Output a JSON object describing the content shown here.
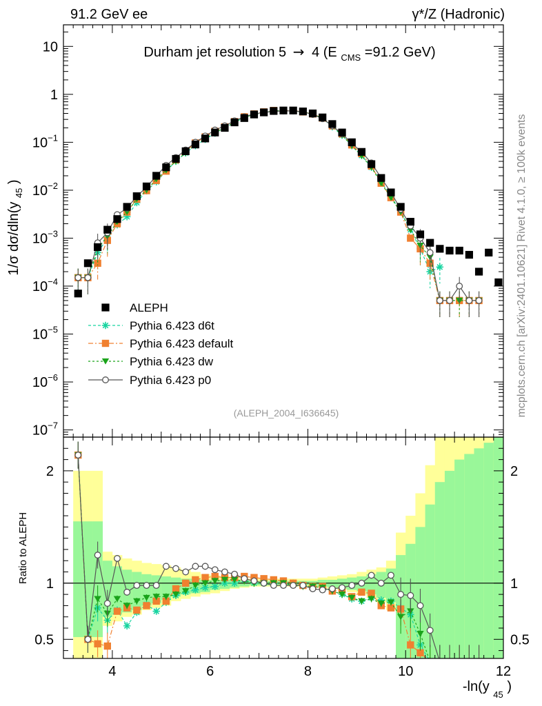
{
  "header": {
    "left": "91.2 GeV ee",
    "right": "γ*/Z (Hadronic)",
    "side_top": "Rivet 4.1.0, ≥ 100k events",
    "side_bottom": "mcplots.cern.ch [arXiv:2401.10621]",
    "analysis_id": "(ALEPH_2004_I636645)"
  },
  "chart_data": {
    "type": "scatter",
    "title": "Durham jet resolution 5→ 4 (E_CMS=91.2 GeV)",
    "title_main": "Durham jet resolution 5",
    "title_arrow": "→",
    "title_tail": "4 (E",
    "title_sub": "CMS",
    "title_end": "=91.2 GeV)",
    "xlabel": "-ln(y_45)",
    "xlabel_main": "-ln(y",
    "xlabel_sub": "45",
    "xlabel_end": ")",
    "ylabel": "1/σ dσ/dln(y_45)",
    "ylabel_main": "1/σ  dσ/dln(y",
    "ylabel_sub": "45",
    "ylabel_end": ")",
    "ratio_ylabel": "Ratio to ALEPH",
    "xlim": [
      3.0,
      12.0
    ],
    "ylim_log": [
      -7.15,
      1.45
    ],
    "ratio_ylim": [
      0.33,
      2.3
    ],
    "x_ticks": [
      4,
      6,
      8,
      10,
      12
    ],
    "x_tick_labels": [
      "4",
      "6",
      "8",
      "10",
      "12"
    ],
    "y_ticks": [
      {
        "exp": 1,
        "label": "10"
      },
      {
        "exp": 0,
        "label": "1"
      },
      {
        "exp": -1,
        "label": "10",
        "sup": "−1"
      },
      {
        "exp": -2,
        "label": "10",
        "sup": "−2"
      },
      {
        "exp": -3,
        "label": "10",
        "sup": "−3"
      },
      {
        "exp": -4,
        "label": "10",
        "sup": "−4"
      },
      {
        "exp": -5,
        "label": "10",
        "sup": "−5"
      },
      {
        "exp": -6,
        "label": "10",
        "sup": "−6"
      },
      {
        "exp": -7,
        "label": "10",
        "sup": "−7"
      }
    ],
    "ratio_ticks": [
      {
        "value": 0.5,
        "label": "0.5"
      },
      {
        "value": 1,
        "label": "1"
      },
      {
        "value": 2,
        "label": "2"
      }
    ],
    "legend": [
      {
        "key": "aleph",
        "label": "ALEPH"
      },
      {
        "key": "d6t",
        "label": "Pythia 6.423 d6t"
      },
      {
        "key": "default",
        "label": "Pythia 6.423 default"
      },
      {
        "key": "dw",
        "label": "Pythia 6.423 dw"
      },
      {
        "key": "p0",
        "label": "Pythia 6.423 p0"
      }
    ],
    "colors": {
      "aleph": "#000000",
      "d6t": "#17d4a0",
      "default": "#f08030",
      "dw": "#1aa31a",
      "p0": "#555555",
      "band_inner": "#99f799",
      "band_outer": "#ffff99"
    },
    "data": {
      "x": [
        3.3,
        3.5,
        3.7,
        3.9,
        4.1,
        4.3,
        4.5,
        4.7,
        4.9,
        5.1,
        5.3,
        5.5,
        5.7,
        5.9,
        6.1,
        6.3,
        6.5,
        6.7,
        6.9,
        7.1,
        7.3,
        7.5,
        7.7,
        7.9,
        8.1,
        8.3,
        8.5,
        8.7,
        8.9,
        9.1,
        9.3,
        9.5,
        9.7,
        9.9,
        10.1,
        10.3,
        10.5,
        10.7,
        10.9,
        11.1,
        11.3,
        11.5,
        11.7,
        11.9
      ],
      "y": [
        7e-05,
        0.0003,
        0.00065,
        0.0015,
        0.0025,
        0.0045,
        0.0075,
        0.012,
        0.02,
        0.03,
        0.045,
        0.065,
        0.09,
        0.12,
        0.16,
        0.2,
        0.26,
        0.32,
        0.38,
        0.42,
        0.45,
        0.46,
        0.46,
        0.44,
        0.4,
        0.33,
        0.24,
        0.16,
        0.1,
        0.063,
        0.035,
        0.018,
        0.009,
        0.0045,
        0.0022,
        0.0012,
        0.0008,
        0.0006,
        0.00055,
        0.00055,
        0.00045,
        0.0002,
        0.0005,
        0.00012
      ]
    },
    "ratio_bands": {
      "x_edges": [
        3.2,
        3.4,
        3.6,
        3.8,
        4.0,
        4.2,
        4.4,
        4.6,
        4.8,
        5.0,
        5.2,
        5.4,
        5.6,
        5.8,
        6.0,
        6.2,
        6.4,
        6.6,
        6.8,
        7.0,
        7.2,
        7.4,
        7.6,
        7.8,
        8.0,
        8.2,
        8.4,
        8.6,
        8.8,
        9.0,
        9.2,
        9.4,
        9.6,
        9.8,
        10.0,
        10.2,
        10.4,
        10.6,
        10.8,
        11.0,
        11.2,
        11.4,
        11.6,
        11.8,
        12.0
      ],
      "inner_lo": [
        0.52,
        0.52,
        0.52,
        0.7,
        0.72,
        0.74,
        0.76,
        0.8,
        0.82,
        0.85,
        0.88,
        0.9,
        0.91,
        0.92,
        0.94,
        0.95,
        0.96,
        0.97,
        0.98,
        0.98,
        0.98,
        0.98,
        0.98,
        0.98,
        0.98,
        0.97,
        0.96,
        0.95,
        0.94,
        0.93,
        0.9,
        0.87,
        0.83,
        0.33,
        0.33,
        0.33,
        0.33,
        0.33,
        0.33,
        0.33,
        0.33,
        0.33,
        0.33,
        0.33
      ],
      "inner_hi": [
        1.55,
        1.55,
        1.55,
        1.2,
        1.15,
        1.12,
        1.1,
        1.08,
        1.07,
        1.06,
        1.05,
        1.04,
        1.04,
        1.03,
        1.03,
        1.03,
        1.03,
        1.02,
        1.02,
        1.02,
        1.02,
        1.02,
        1.02,
        1.02,
        1.02,
        1.03,
        1.03,
        1.04,
        1.05,
        1.06,
        1.08,
        1.1,
        1.13,
        1.25,
        1.35,
        1.5,
        1.7,
        1.9,
        2.0,
        2.1,
        2.15,
        2.2,
        2.25,
        2.3
      ],
      "outer_lo": [
        0.33,
        0.33,
        0.33,
        0.62,
        0.66,
        0.7,
        0.72,
        0.76,
        0.78,
        0.8,
        0.84,
        0.86,
        0.88,
        0.9,
        0.91,
        0.93,
        0.95,
        0.96,
        0.97,
        0.97,
        0.97,
        0.97,
        0.97,
        0.97,
        0.97,
        0.96,
        0.95,
        0.94,
        0.92,
        0.9,
        0.87,
        0.83,
        0.76,
        0.33,
        0.33,
        0.33,
        0.33,
        0.33,
        0.33,
        0.33,
        0.33,
        0.33,
        0.33,
        0.33
      ],
      "outer_hi": [
        2.0,
        2.0,
        2.0,
        1.28,
        1.25,
        1.22,
        1.2,
        1.18,
        1.17,
        1.16,
        1.14,
        1.12,
        1.1,
        1.08,
        1.07,
        1.06,
        1.05,
        1.04,
        1.04,
        1.04,
        1.04,
        1.04,
        1.04,
        1.04,
        1.04,
        1.05,
        1.06,
        1.07,
        1.08,
        1.1,
        1.12,
        1.14,
        1.2,
        1.45,
        1.6,
        1.8,
        2.05,
        2.3,
        2.3,
        2.3,
        2.3,
        2.3,
        2.3,
        2.3
      ]
    },
    "series": [
      {
        "key": "d6t",
        "name": "Pythia 6.423 d6t",
        "marker": "star",
        "dash": "4,3",
        "x": [
          3.3,
          3.5,
          3.7,
          3.9,
          4.1,
          4.3,
          4.5,
          4.7,
          4.9,
          5.1,
          5.3,
          5.5,
          5.7,
          5.9,
          6.1,
          6.3,
          6.5,
          6.7,
          6.9,
          7.1,
          7.3,
          7.5,
          7.7,
          7.9,
          8.1,
          8.3,
          8.5,
          8.7,
          8.9,
          9.1,
          9.3,
          9.5,
          9.7,
          9.9,
          10.1,
          10.3,
          10.5,
          10.7
        ],
        "y": [
          0.00015,
          0.00015,
          0.0005,
          0.001,
          0.0019,
          0.0028,
          0.0055,
          0.0097,
          0.015,
          0.025,
          0.04,
          0.06,
          0.085,
          0.115,
          0.155,
          0.2,
          0.26,
          0.33,
          0.38,
          0.42,
          0.45,
          0.46,
          0.46,
          0.43,
          0.39,
          0.32,
          0.21,
          0.14,
          0.085,
          0.053,
          0.03,
          0.015,
          0.0075,
          0.0035,
          0.0015,
          0.0006,
          0.0002,
          0.00025
        ],
        "ratio": [
          2.14,
          0.5,
          0.78,
          0.67,
          0.76,
          0.62,
          0.74,
          0.81,
          0.75,
          0.83,
          0.89,
          0.92,
          0.94,
          0.96,
          0.97,
          1.0,
          1.0,
          1.03,
          1.0,
          1.0,
          1.0,
          1.0,
          1.0,
          0.98,
          0.97,
          0.97,
          0.93,
          0.9,
          0.86,
          0.84,
          0.87,
          0.85,
          0.84,
          0.78,
          0.72,
          0.45,
          0.3,
          0.3
        ]
      },
      {
        "key": "default",
        "name": "Pythia 6.423 default",
        "marker": "square",
        "dash": "7,3,2,3",
        "x": [
          3.3,
          3.5,
          3.7,
          3.9,
          4.1,
          4.3,
          4.5,
          4.7,
          4.9,
          5.1,
          5.3,
          5.5,
          5.7,
          5.9,
          6.1,
          6.3,
          6.5,
          6.7,
          6.9,
          7.1,
          7.3,
          7.5,
          7.7,
          7.9,
          8.1,
          8.3,
          8.5,
          8.7,
          8.9,
          9.1,
          9.3,
          9.5,
          9.7,
          9.9,
          10.1,
          10.3,
          10.5,
          10.7,
          10.9,
          11.1,
          11.3,
          11.5
        ],
        "y": [
          0.00015,
          0.00015,
          0.0003,
          0.0009,
          0.002,
          0.0035,
          0.0065,
          0.0098,
          0.016,
          0.025,
          0.043,
          0.065,
          0.097,
          0.13,
          0.17,
          0.21,
          0.27,
          0.34,
          0.39,
          0.43,
          0.46,
          0.46,
          0.46,
          0.43,
          0.39,
          0.32,
          0.22,
          0.15,
          0.088,
          0.058,
          0.032,
          0.014,
          0.007,
          0.0035,
          0.001,
          0.0006,
          0.0003,
          5e-05,
          5e-05,
          5e-05,
          5e-05,
          5e-05
        ],
        "ratio": [
          2.14,
          0.5,
          0.46,
          0.44,
          0.75,
          0.78,
          0.76,
          0.8,
          0.84,
          0.84,
          0.95,
          1.0,
          1.03,
          1.05,
          1.06,
          1.05,
          1.05,
          1.06,
          1.05,
          1.04,
          1.03,
          1.02,
          1.0,
          0.98,
          0.97,
          0.97,
          0.93,
          0.94,
          0.88,
          0.92,
          0.91,
          0.8,
          0.78,
          0.77,
          0.45,
          0.38,
          0.3,
          0.3,
          0.3,
          0.3,
          0.3,
          0.3
        ]
      },
      {
        "key": "dw",
        "name": "Pythia 6.423 dw",
        "marker": "triangle",
        "dash": "3,3",
        "x": [
          3.3,
          3.5,
          3.7,
          3.9,
          4.1,
          4.3,
          4.5,
          4.7,
          4.9,
          5.1,
          5.3,
          5.5,
          5.7,
          5.9,
          6.1,
          6.3,
          6.5,
          6.7,
          6.9,
          7.1,
          7.3,
          7.5,
          7.7,
          7.9,
          8.1,
          8.3,
          8.5,
          8.7,
          8.9,
          9.1,
          9.3,
          9.5,
          9.7,
          9.9,
          10.1,
          10.3,
          10.5,
          10.7,
          10.9,
          11.1,
          11.3,
          11.5
        ],
        "y": [
          0.00015,
          0.00015,
          0.0006,
          0.0011,
          0.0022,
          0.0035,
          0.0065,
          0.01,
          0.017,
          0.026,
          0.04,
          0.06,
          0.09,
          0.12,
          0.16,
          0.2,
          0.26,
          0.33,
          0.38,
          0.42,
          0.45,
          0.46,
          0.45,
          0.43,
          0.39,
          0.32,
          0.22,
          0.14,
          0.085,
          0.052,
          0.03,
          0.014,
          0.007,
          0.0035,
          0.0015,
          0.0007,
          0.0004,
          5e-05,
          5e-05,
          5e-05,
          5e-05,
          5e-05
        ],
        "ratio": [
          2.14,
          0.5,
          0.86,
          0.73,
          0.86,
          0.8,
          0.84,
          0.87,
          0.88,
          0.88,
          0.9,
          0.93,
          0.98,
          1.0,
          1.02,
          1.03,
          1.03,
          1.02,
          1.0,
          1.0,
          1.0,
          1.0,
          0.98,
          0.97,
          0.97,
          0.96,
          0.93,
          0.9,
          0.87,
          0.84,
          0.86,
          0.82,
          0.83,
          0.7,
          0.75,
          0.55,
          0.3,
          0.3,
          0.3,
          0.3,
          0.3,
          0.3
        ]
      },
      {
        "key": "p0",
        "name": "Pythia 6.423 p0",
        "marker": "circle",
        "dash": "",
        "x": [
          3.3,
          3.5,
          3.7,
          3.9,
          4.1,
          4.3,
          4.5,
          4.7,
          4.9,
          5.1,
          5.3,
          5.5,
          5.7,
          5.9,
          6.1,
          6.3,
          6.5,
          6.7,
          6.9,
          7.1,
          7.3,
          7.5,
          7.7,
          7.9,
          8.1,
          8.3,
          8.5,
          8.7,
          8.9,
          9.1,
          9.3,
          9.5,
          9.7,
          9.9,
          10.1,
          10.3,
          10.5,
          10.7,
          10.9,
          11.1,
          11.3,
          11.5
        ],
        "y": [
          0.00015,
          0.00015,
          0.0008,
          0.0013,
          0.0031,
          0.0042,
          0.0075,
          0.0115,
          0.02,
          0.033,
          0.048,
          0.069,
          0.1,
          0.135,
          0.18,
          0.22,
          0.28,
          0.34,
          0.39,
          0.42,
          0.44,
          0.45,
          0.45,
          0.43,
          0.38,
          0.31,
          0.22,
          0.15,
          0.095,
          0.063,
          0.037,
          0.018,
          0.009,
          0.004,
          0.0018,
          0.001,
          0.0005,
          5e-05,
          5e-05,
          0.0001,
          5e-05,
          5e-05
        ],
        "ratio": [
          2.14,
          0.5,
          1.25,
          0.82,
          1.22,
          0.92,
          0.98,
          0.98,
          0.98,
          1.15,
          1.13,
          1.1,
          1.15,
          1.15,
          1.12,
          1.1,
          1.08,
          1.04,
          1.02,
          1.0,
          0.98,
          0.98,
          0.98,
          0.98,
          0.95,
          0.94,
          0.95,
          0.96,
          0.98,
          1.0,
          1.07,
          1.0,
          1.07,
          0.9,
          0.89,
          0.8,
          0.58,
          0.3,
          0.3,
          0.3,
          0.3,
          0.3
        ]
      }
    ]
  }
}
